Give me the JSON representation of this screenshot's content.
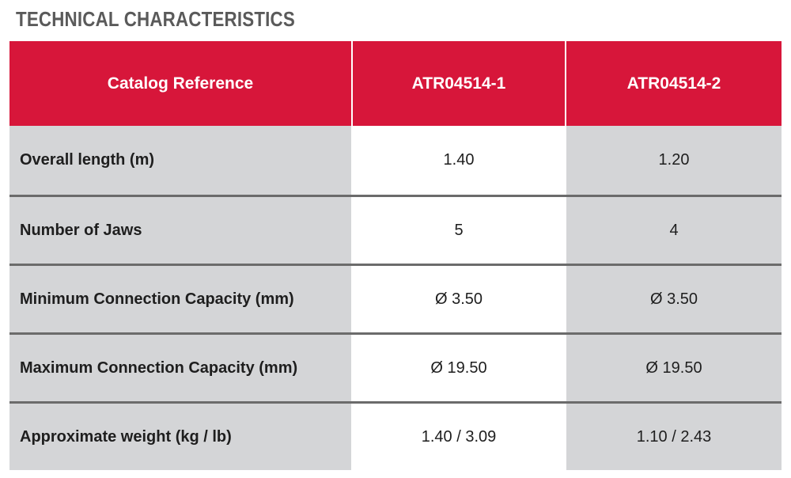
{
  "title": "TECHNICAL CHARACTERISTICS",
  "table": {
    "headers": [
      "Catalog Reference",
      "ATR04514-1",
      "ATR04514-2"
    ],
    "rows": [
      {
        "label": "Overall length (m)",
        "values": [
          "1.40",
          "1.20"
        ]
      },
      {
        "label": "Number of Jaws",
        "values": [
          "5",
          "4"
        ]
      },
      {
        "label": "Minimum Connection Capacity (mm)",
        "values": [
          "Ø 3.50",
          "Ø 3.50"
        ]
      },
      {
        "label": "Maximum Connection Capacity (mm)",
        "values": [
          "Ø 19.50",
          "Ø 19.50"
        ]
      },
      {
        "label": "Approximate weight  (kg / lb)",
        "values": [
          "1.40 / 3.09",
          "1.10 / 2.43"
        ]
      }
    ]
  },
  "colors": {
    "header_red": "#d7163a",
    "label_gray": "#d4d5d7",
    "title_gray": "#5a5a5a",
    "row_divider": "#6b6b6b"
  }
}
